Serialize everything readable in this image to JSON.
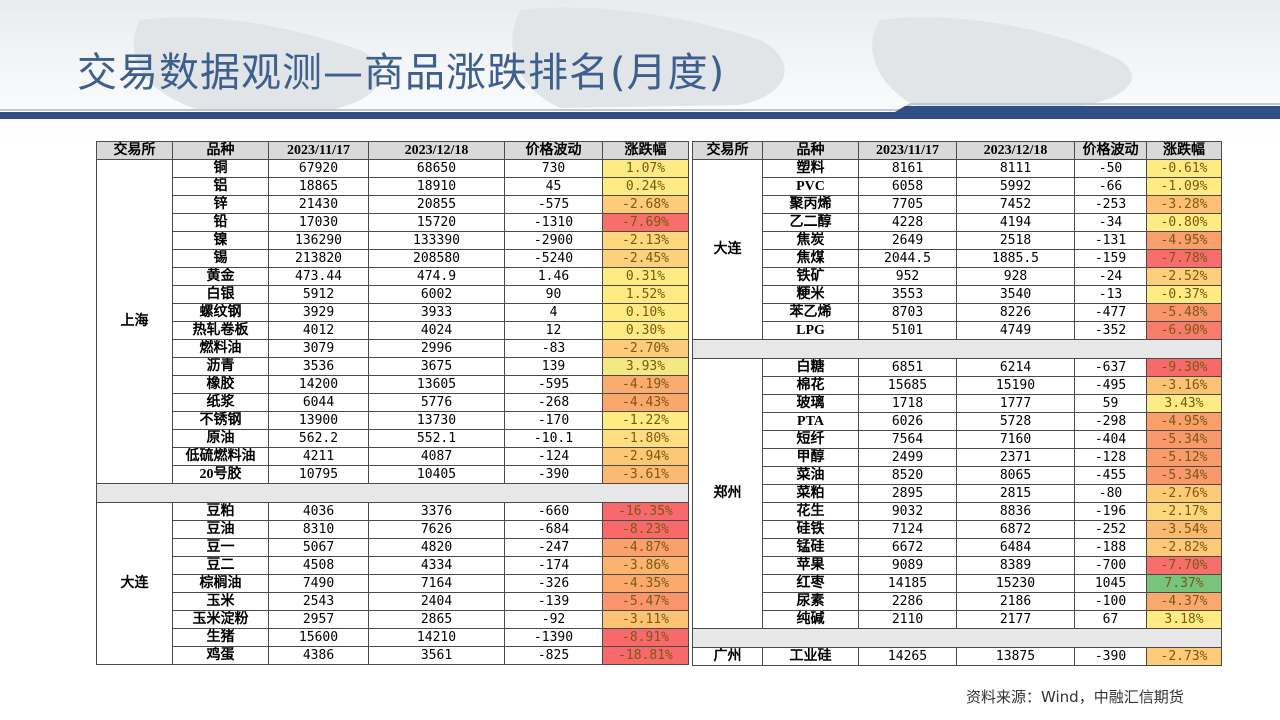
{
  "title": "交易数据观测—商品涨跌排名(月度)",
  "source": "资料来源：Wind，中融汇信期货",
  "headers": {
    "exchange": "交易所",
    "variety": "品种",
    "d1": "2023/11/17",
    "d2": "2023/12/18",
    "change": "价格波动",
    "pct": "涨跌幅"
  },
  "left": {
    "shanghai": {
      "name": "上海",
      "rows": [
        {
          "v": "铜",
          "a": "67920",
          "b": "68650",
          "c": "730",
          "p": "1.07%"
        },
        {
          "v": "铝",
          "a": "18865",
          "b": "18910",
          "c": "45",
          "p": "0.24%"
        },
        {
          "v": "锌",
          "a": "21430",
          "b": "20855",
          "c": "-575",
          "p": "-2.68%"
        },
        {
          "v": "铅",
          "a": "17030",
          "b": "15720",
          "c": "-1310",
          "p": "-7.69%"
        },
        {
          "v": "镍",
          "a": "136290",
          "b": "133390",
          "c": "-2900",
          "p": "-2.13%"
        },
        {
          "v": "锡",
          "a": "213820",
          "b": "208580",
          "c": "-5240",
          "p": "-2.45%"
        },
        {
          "v": "黄金",
          "a": "473.44",
          "b": "474.9",
          "c": "1.46",
          "p": "0.31%"
        },
        {
          "v": "白银",
          "a": "5912",
          "b": "6002",
          "c": "90",
          "p": "1.52%"
        },
        {
          "v": "螺纹钢",
          "a": "3929",
          "b": "3933",
          "c": "4",
          "p": "0.10%"
        },
        {
          "v": "热轧卷板",
          "a": "4012",
          "b": "4024",
          "c": "12",
          "p": "0.30%"
        },
        {
          "v": "燃料油",
          "a": "3079",
          "b": "2996",
          "c": "-83",
          "p": "-2.70%"
        },
        {
          "v": "沥青",
          "a": "3536",
          "b": "3675",
          "c": "139",
          "p": "3.93%"
        },
        {
          "v": "橡胶",
          "a": "14200",
          "b": "13605",
          "c": "-595",
          "p": "-4.19%"
        },
        {
          "v": "纸浆",
          "a": "6044",
          "b": "5776",
          "c": "-268",
          "p": "-4.43%"
        },
        {
          "v": "不锈钢",
          "a": "13900",
          "b": "13730",
          "c": "-170",
          "p": "-1.22%"
        },
        {
          "v": "原油",
          "a": "562.2",
          "b": "552.1",
          "c": "-10.1",
          "p": "-1.80%"
        },
        {
          "v": "低硫燃料油",
          "a": "4211",
          "b": "4087",
          "c": "-124",
          "p": "-2.94%"
        },
        {
          "v": "20号胶",
          "a": "10795",
          "b": "10405",
          "c": "-390",
          "p": "-3.61%"
        }
      ]
    },
    "dalian": {
      "name": "大连",
      "rows": [
        {
          "v": "豆粕",
          "a": "4036",
          "b": "3376",
          "c": "-660",
          "p": "-16.35%"
        },
        {
          "v": "豆油",
          "a": "8310",
          "b": "7626",
          "c": "-684",
          "p": "-8.23%"
        },
        {
          "v": "豆一",
          "a": "5067",
          "b": "4820",
          "c": "-247",
          "p": "-4.87%"
        },
        {
          "v": "豆二",
          "a": "4508",
          "b": "4334",
          "c": "-174",
          "p": "-3.86%"
        },
        {
          "v": "棕榈油",
          "a": "7490",
          "b": "7164",
          "c": "-326",
          "p": "-4.35%"
        },
        {
          "v": "玉米",
          "a": "2543",
          "b": "2404",
          "c": "-139",
          "p": "-5.47%"
        },
        {
          "v": "玉米淀粉",
          "a": "2957",
          "b": "2865",
          "c": "-92",
          "p": "-3.11%"
        },
        {
          "v": "生猪",
          "a": "15600",
          "b": "14210",
          "c": "-1390",
          "p": "-8.91%"
        },
        {
          "v": "鸡蛋",
          "a": "4386",
          "b": "3561",
          "c": "-825",
          "p": "-18.81%"
        }
      ]
    }
  },
  "right": {
    "dalian": {
      "name": "大连",
      "rows": [
        {
          "v": "塑料",
          "a": "8161",
          "b": "8111",
          "c": "-50",
          "p": "-0.61%"
        },
        {
          "v": "PVC",
          "a": "6058",
          "b": "5992",
          "c": "-66",
          "p": "-1.09%"
        },
        {
          "v": "聚丙烯",
          "a": "7705",
          "b": "7452",
          "c": "-253",
          "p": "-3.28%"
        },
        {
          "v": "乙二醇",
          "a": "4228",
          "b": "4194",
          "c": "-34",
          "p": "-0.80%"
        },
        {
          "v": "焦炭",
          "a": "2649",
          "b": "2518",
          "c": "-131",
          "p": "-4.95%"
        },
        {
          "v": "焦煤",
          "a": "2044.5",
          "b": "1885.5",
          "c": "-159",
          "p": "-7.78%"
        },
        {
          "v": "铁矿",
          "a": "952",
          "b": "928",
          "c": "-24",
          "p": "-2.52%"
        },
        {
          "v": "粳米",
          "a": "3553",
          "b": "3540",
          "c": "-13",
          "p": "-0.37%"
        },
        {
          "v": "苯乙烯",
          "a": "8703",
          "b": "8226",
          "c": "-477",
          "p": "-5.48%"
        },
        {
          "v": "LPG",
          "a": "5101",
          "b": "4749",
          "c": "-352",
          "p": "-6.90%"
        }
      ]
    },
    "zhengzhou": {
      "name": "郑州",
      "rows": [
        {
          "v": "白糖",
          "a": "6851",
          "b": "6214",
          "c": "-637",
          "p": "-9.30%"
        },
        {
          "v": "棉花",
          "a": "15685",
          "b": "15190",
          "c": "-495",
          "p": "-3.16%"
        },
        {
          "v": "玻璃",
          "a": "1718",
          "b": "1777",
          "c": "59",
          "p": "3.43%"
        },
        {
          "v": "PTA",
          "a": "6026",
          "b": "5728",
          "c": "-298",
          "p": "-4.95%"
        },
        {
          "v": "短纤",
          "a": "7564",
          "b": "7160",
          "c": "-404",
          "p": "-5.34%"
        },
        {
          "v": "甲醇",
          "a": "2499",
          "b": "2371",
          "c": "-128",
          "p": "-5.12%"
        },
        {
          "v": "菜油",
          "a": "8520",
          "b": "8065",
          "c": "-455",
          "p": "-5.34%"
        },
        {
          "v": "菜粕",
          "a": "2895",
          "b": "2815",
          "c": "-80",
          "p": "-2.76%"
        },
        {
          "v": "花生",
          "a": "9032",
          "b": "8836",
          "c": "-196",
          "p": "-2.17%"
        },
        {
          "v": "硅铁",
          "a": "7124",
          "b": "6872",
          "c": "-252",
          "p": "-3.54%"
        },
        {
          "v": "锰硅",
          "a": "6672",
          "b": "6484",
          "c": "-188",
          "p": "-2.82%"
        },
        {
          "v": "苹果",
          "a": "9089",
          "b": "8389",
          "c": "-700",
          "p": "-7.70%"
        },
        {
          "v": "红枣",
          "a": "14185",
          "b": "15230",
          "c": "1045",
          "p": "7.37%"
        },
        {
          "v": "尿素",
          "a": "2286",
          "b": "2186",
          "c": "-100",
          "p": "-4.37%"
        },
        {
          "v": "纯碱",
          "a": "2110",
          "b": "2177",
          "c": "67",
          "p": "3.18%"
        }
      ]
    },
    "guangzhou": {
      "name": "广州",
      "rows": [
        {
          "v": "工业硅",
          "a": "14265",
          "b": "13875",
          "c": "-390",
          "p": "-2.73%"
        }
      ]
    }
  },
  "colors": {
    "title": "#3d5f8e",
    "accent": "#2f4f86",
    "header": "#d9d9d9"
  }
}
